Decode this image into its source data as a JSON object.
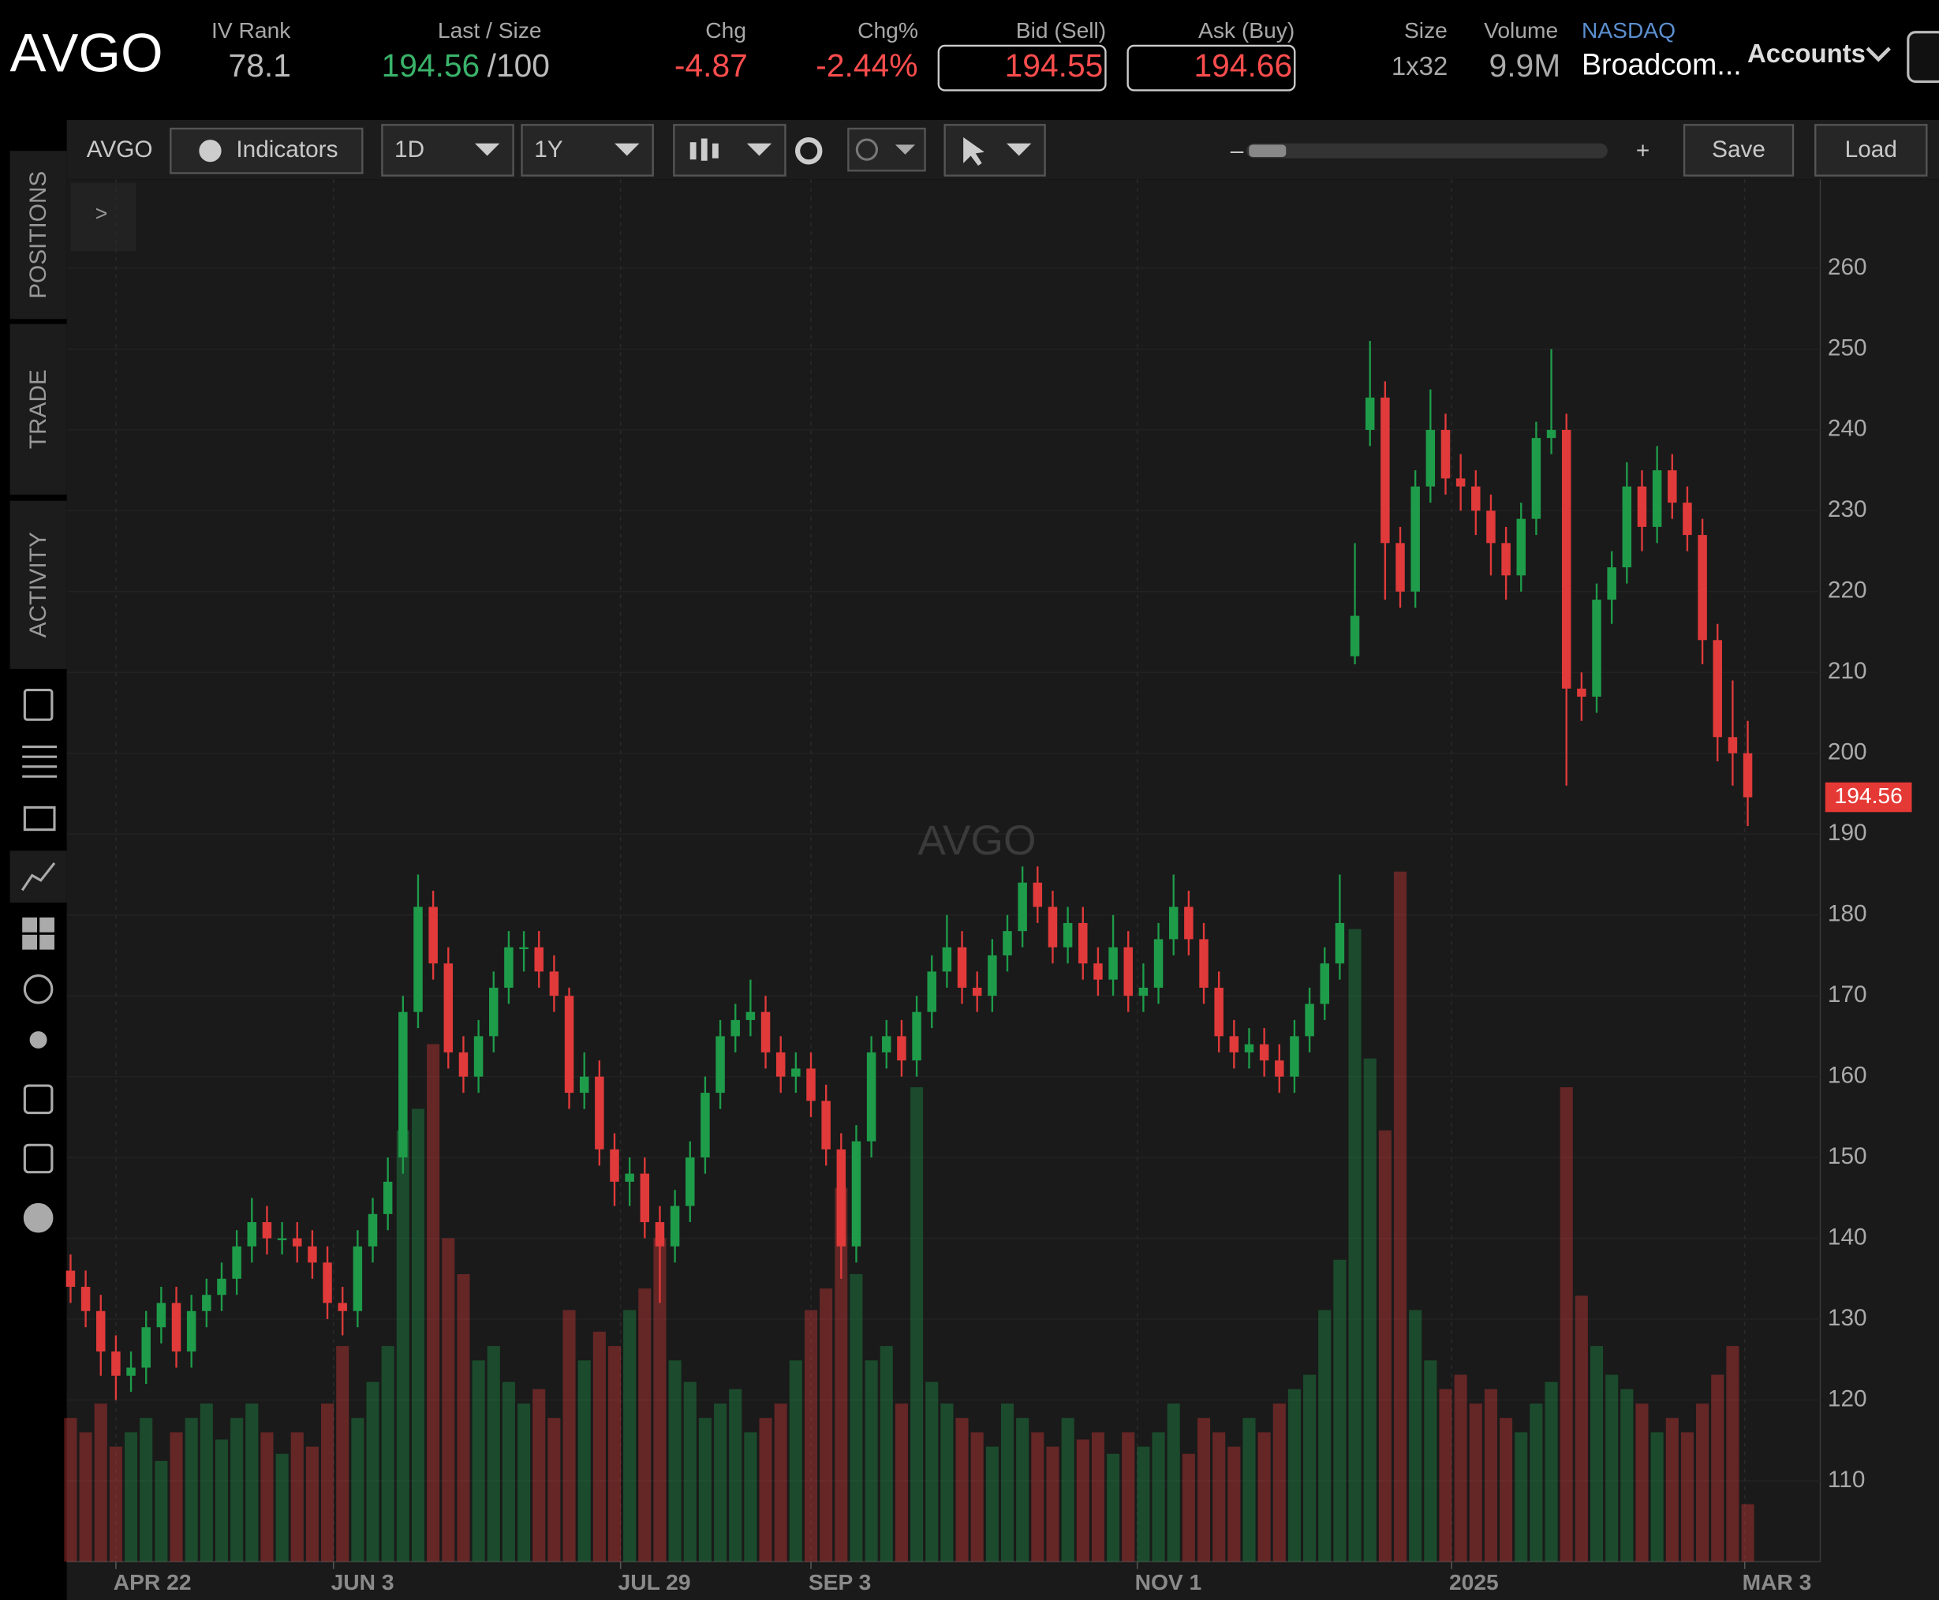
{
  "header": {
    "symbol": "AVGO",
    "iv_rank_label": "IV Rank",
    "iv_rank": "78.1",
    "last_size_label": "Last / Size",
    "last": "194.56",
    "size": "/100",
    "chg_label": "Chg",
    "chg": "-4.87",
    "chg_pct_label": "Chg%",
    "chg_pct": "-2.44%",
    "bid_label": "Bid (Sell)",
    "bid": "194.55",
    "ask_label": "Ask (Buy)",
    "ask": "194.66",
    "size_label": "Size",
    "size_value": "1x32",
    "volume_label": "Volume",
    "volume": "9.9M",
    "exchange": "NASDAQ",
    "name": "Broadcom...",
    "accounts": "Accounts"
  },
  "toolbar": {
    "symbol": "AVGO",
    "indicators": "Indicators",
    "interval": "1D",
    "range": "1Y",
    "zoom_minus": "–",
    "zoom_plus": "+",
    "save": "Save",
    "load": "Load",
    "collapse": ">"
  },
  "sidebar": {
    "tabs": [
      "POSITIONS",
      "TRADE",
      "ACTIVITY"
    ]
  },
  "chart_data": {
    "type": "candlestick",
    "watermark": "AVGO",
    "up_color": "#1e9c4a",
    "down_color": "#e03a3a",
    "grid": true,
    "open": [
      136,
      134,
      131,
      126,
      123,
      124,
      129,
      132,
      126,
      131,
      133,
      135,
      139,
      142,
      140,
      140,
      139,
      137,
      132,
      131,
      139,
      143,
      150,
      168,
      181,
      174,
      163,
      160,
      165,
      171,
      176,
      176,
      173,
      170,
      158,
      160,
      151,
      147,
      148,
      142,
      139,
      144,
      150,
      158,
      165,
      167,
      168,
      163,
      160,
      161,
      157,
      151,
      139,
      152,
      163,
      165,
      162,
      168,
      173,
      176,
      171,
      170,
      175,
      178,
      184,
      181,
      176,
      179,
      174,
      172,
      176,
      170,
      171,
      177,
      181,
      177,
      171,
      165,
      163,
      164,
      162,
      160,
      165,
      169,
      174,
      212,
      240,
      244,
      226,
      220,
      233,
      240,
      234,
      233,
      230,
      226,
      222,
      229,
      239,
      240,
      208,
      207,
      219,
      223,
      233,
      228,
      235,
      231,
      227,
      214,
      202,
      200
    ],
    "high": [
      138,
      136,
      133,
      128,
      126,
      131,
      134,
      134,
      133,
      135,
      137,
      141,
      145,
      144,
      142,
      142,
      141,
      139,
      134,
      141,
      145,
      150,
      170,
      185,
      183,
      176,
      165,
      167,
      173,
      178,
      178,
      178,
      175,
      171,
      163,
      162,
      153,
      150,
      150,
      144,
      146,
      152,
      160,
      167,
      169,
      172,
      170,
      165,
      163,
      163,
      159,
      153,
      154,
      165,
      167,
      167,
      170,
      175,
      180,
      178,
      173,
      177,
      180,
      186,
      186,
      183,
      181,
      181,
      176,
      180,
      178,
      174,
      179,
      185,
      183,
      179,
      173,
      167,
      166,
      166,
      164,
      167,
      171,
      176,
      185,
      226,
      251,
      246,
      228,
      235,
      245,
      242,
      237,
      235,
      232,
      228,
      231,
      241,
      250,
      242,
      210,
      221,
      225,
      236,
      235,
      238,
      237,
      233,
      229,
      216,
      209,
      204
    ],
    "low": [
      132,
      129,
      123,
      120,
      121,
      122,
      127,
      124,
      124,
      129,
      131,
      133,
      137,
      138,
      138,
      137,
      135,
      130,
      128,
      129,
      137,
      141,
      148,
      166,
      172,
      161,
      158,
      158,
      163,
      169,
      173,
      171,
      168,
      156,
      156,
      149,
      144,
      144,
      140,
      132,
      137,
      142,
      148,
      156,
      163,
      165,
      161,
      158,
      158,
      155,
      149,
      135,
      137,
      150,
      161,
      160,
      160,
      166,
      171,
      169,
      168,
      168,
      173,
      176,
      179,
      174,
      174,
      172,
      170,
      170,
      168,
      168,
      169,
      175,
      175,
      169,
      163,
      161,
      161,
      160,
      158,
      158,
      163,
      167,
      172,
      211,
      238,
      219,
      218,
      218,
      231,
      232,
      230,
      227,
      222,
      219,
      220,
      227,
      237,
      196,
      204,
      205,
      216,
      221,
      225,
      226,
      229,
      225,
      211,
      199,
      196,
      191
    ],
    "close": [
      134,
      131,
      126,
      123,
      124,
      129,
      132,
      126,
      131,
      133,
      135,
      139,
      142,
      140,
      140,
      139,
      137,
      132,
      131,
      139,
      143,
      147,
      168,
      181,
      174,
      163,
      160,
      165,
      171,
      176,
      176,
      173,
      170,
      158,
      160,
      151,
      147,
      148,
      142,
      139,
      144,
      150,
      158,
      165,
      167,
      168,
      163,
      160,
      161,
      157,
      151,
      139,
      152,
      163,
      165,
      162,
      168,
      173,
      176,
      171,
      170,
      175,
      178,
      184,
      181,
      176,
      179,
      174,
      172,
      176,
      170,
      171,
      177,
      181,
      177,
      171,
      165,
      163,
      164,
      162,
      160,
      165,
      169,
      174,
      179,
      217,
      244,
      226,
      220,
      233,
      240,
      234,
      233,
      230,
      226,
      222,
      229,
      239,
      240,
      208,
      207,
      219,
      223,
      233,
      228,
      235,
      231,
      227,
      214,
      202,
      200,
      194.56
    ],
    "volume": [
      20,
      18,
      22,
      16,
      18,
      20,
      14,
      18,
      20,
      22,
      17,
      20,
      22,
      18,
      15,
      18,
      16,
      22,
      30,
      20,
      25,
      30,
      60,
      63,
      72,
      45,
      40,
      28,
      30,
      25,
      22,
      24,
      20,
      35,
      28,
      32,
      30,
      35,
      38,
      45,
      28,
      25,
      20,
      22,
      24,
      18,
      20,
      22,
      28,
      35,
      38,
      52,
      40,
      28,
      30,
      22,
      66,
      25,
      22,
      20,
      18,
      16,
      22,
      20,
      18,
      16,
      20,
      17,
      18,
      15,
      18,
      16,
      18,
      22,
      15,
      20,
      18,
      16,
      20,
      18,
      22,
      24,
      26,
      35,
      42,
      88,
      70,
      60,
      96,
      35,
      28,
      24,
      26,
      22,
      24,
      20,
      18,
      22,
      25,
      66,
      37,
      30,
      26,
      24,
      22,
      18,
      20,
      18,
      22,
      26,
      30,
      8
    ],
    "xlim": [
      -0.25,
      115.8
    ],
    "ylim": [
      100,
      271
    ],
    "vlim": [
      0,
      100
    ],
    "yticks": [
      110,
      120,
      130,
      140,
      150,
      160,
      170,
      180,
      190,
      200,
      210,
      220,
      230,
      240,
      250,
      260
    ],
    "xticks": [
      {
        "value": 3,
        "label": "APR 22"
      },
      {
        "value": 17.4,
        "label": "JUN 3"
      },
      {
        "value": 36.4,
        "label": "JUL 29"
      },
      {
        "value": 49,
        "label": "SEP 3"
      },
      {
        "value": 70.6,
        "label": "NOV 1"
      },
      {
        "value": 91.4,
        "label": "2025"
      },
      {
        "value": 110.8,
        "label": "MAR 3"
      }
    ]
  }
}
